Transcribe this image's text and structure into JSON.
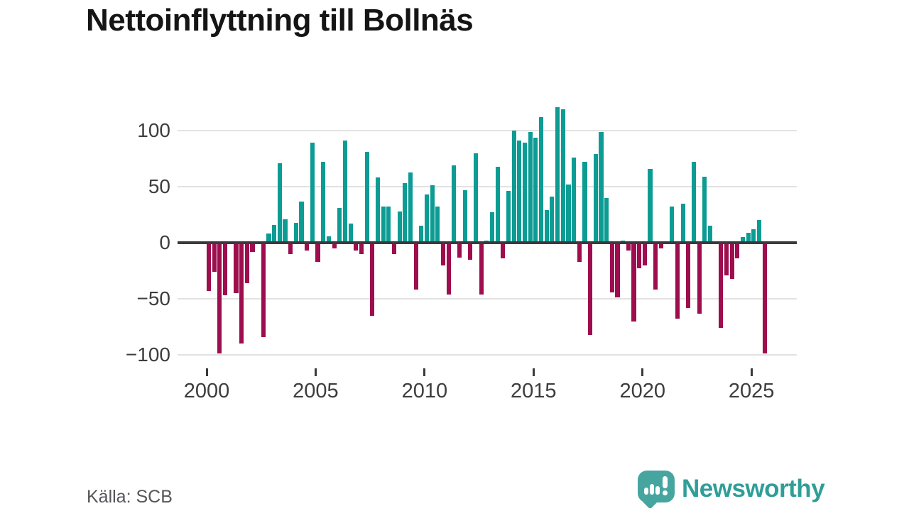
{
  "title": "Nettoinflyttning till Bollnäs",
  "source": "Källa: SCB",
  "branding": {
    "name": "Newsworthy",
    "logo_icon": "bar-chart-speech-bubble-icon",
    "color": "#2f9e98"
  },
  "colors": {
    "positive_bar": "#0d9c94",
    "negative_bar": "#9e0d4d",
    "zero_axis": "#3a3a3a",
    "gridline": "#e2e2e2",
    "axis_text": "#3d3d3d",
    "title_text": "#151515",
    "source_text": "#55555a"
  },
  "chart_data": {
    "type": "bar",
    "title": "Nettoinflyttning till Bollnäs",
    "xlabel": "",
    "ylabel": "",
    "grid": true,
    "legend": false,
    "frequency": "quarterly",
    "first_bar_period": "2000 Q1",
    "last_bar_period": "2025 Q3",
    "bars_per_year": 4,
    "x_tick_years": [
      2000,
      2005,
      2010,
      2015,
      2020,
      2025
    ],
    "x_tick_labels": [
      "2000",
      "2005",
      "2010",
      "2015",
      "2020",
      "2025"
    ],
    "y_ticks": [
      100,
      50,
      0,
      -50,
      -100
    ],
    "y_tick_labels": [
      "100",
      "50",
      "0",
      "−50",
      "−100"
    ],
    "ylim": [
      -110,
      125
    ],
    "values": [
      -43,
      -26,
      -99,
      -47,
      0,
      -45,
      -90,
      -36,
      -8,
      0,
      -84,
      8,
      16,
      71,
      21,
      -10,
      18,
      37,
      -7,
      89,
      -17,
      72,
      6,
      -5,
      31,
      91,
      17,
      -7,
      -10,
      81,
      -65,
      58,
      32,
      32,
      -10,
      28,
      53,
      63,
      -42,
      15,
      43,
      51,
      32,
      -20,
      -46,
      69,
      -13,
      47,
      -15,
      80,
      -46,
      2,
      27,
      68,
      -14,
      46,
      100,
      91,
      89,
      99,
      94,
      112,
      29,
      41,
      121,
      119,
      52,
      76,
      -17,
      72,
      -82,
      79,
      99,
      40,
      -44,
      -49,
      2,
      -7,
      -70,
      -23,
      -20,
      66,
      -42,
      -5,
      0,
      32,
      -68,
      35,
      -58,
      72,
      -63,
      59,
      15,
      0,
      -76,
      -29,
      -32,
      -14,
      5,
      9,
      12,
      20,
      -99
    ]
  }
}
